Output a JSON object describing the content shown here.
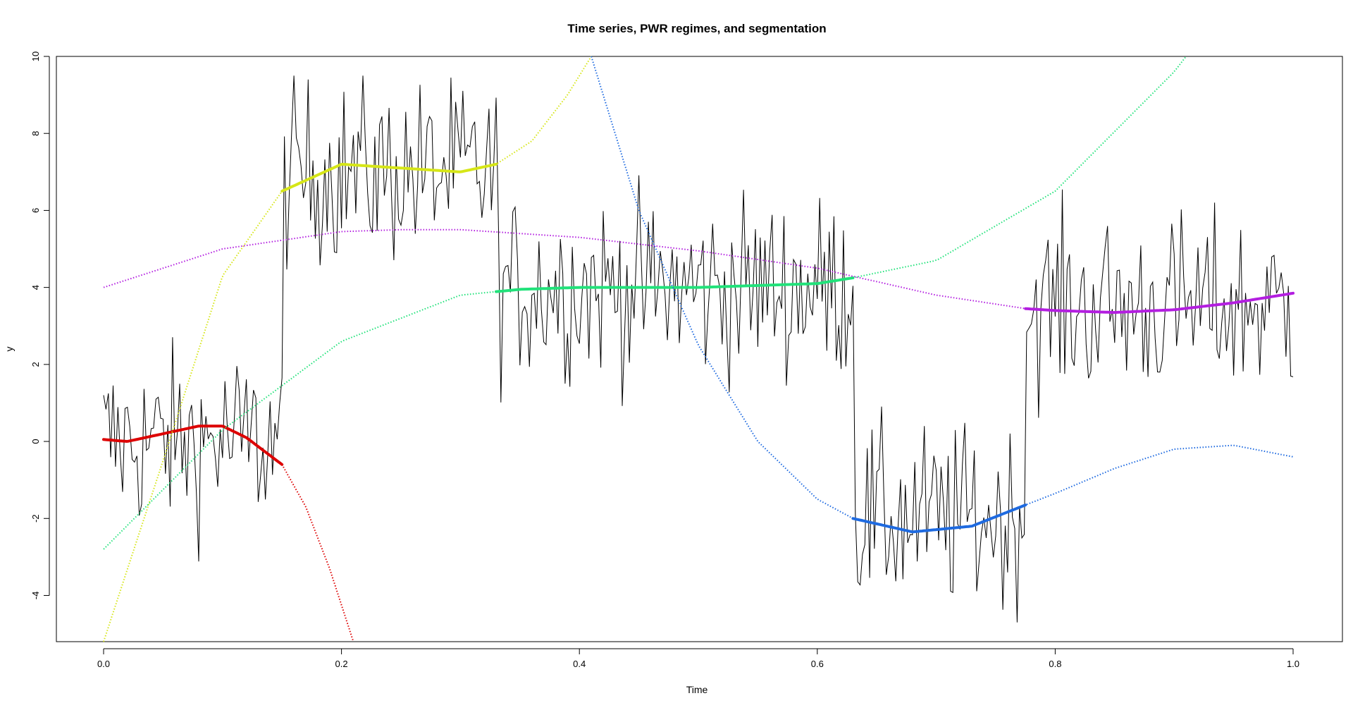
{
  "chart_data": {
    "type": "line",
    "title": "Time series, PWR regimes, and segmentation",
    "xlabel": "Time",
    "ylabel": "y",
    "xlim": [
      0,
      1
    ],
    "ylim": [
      -5.2,
      10
    ],
    "grid": false,
    "legend": "none",
    "x_ticks": [
      {
        "value": 0.0,
        "label": "0.0"
      },
      {
        "value": 0.2,
        "label": "0.2"
      },
      {
        "value": 0.4,
        "label": "0.4"
      },
      {
        "value": 0.6,
        "label": "0.6"
      },
      {
        "value": 0.8,
        "label": "0.8"
      },
      {
        "value": 1.0,
        "label": "1.0"
      }
    ],
    "y_ticks": [
      {
        "value": -4,
        "label": "-4"
      },
      {
        "value": -2,
        "label": "-2"
      },
      {
        "value": 0,
        "label": "0"
      },
      {
        "value": 2,
        "label": "2"
      },
      {
        "value": 4,
        "label": "4"
      },
      {
        "value": 6,
        "label": "6"
      },
      {
        "value": 8,
        "label": "8"
      },
      {
        "value": 10,
        "label": "10"
      }
    ],
    "time_series": {
      "color": "#000000",
      "segments": [
        {
          "start": 0.0,
          "end": 0.15,
          "level": 0.0
        },
        {
          "start": 0.15,
          "end": 0.33,
          "level": 7.0
        },
        {
          "start": 0.33,
          "end": 0.63,
          "level": 4.0
        },
        {
          "start": 0.63,
          "end": 0.775,
          "level": -2.0
        },
        {
          "start": 0.775,
          "end": 1.0,
          "level": 3.5
        }
      ],
      "noise_amplitude": 1.2,
      "samples": 500
    },
    "regimes": [
      {
        "color": "#dd0000",
        "x": [
          0.0,
          0.02,
          0.05,
          0.08,
          0.1,
          0.12,
          0.15,
          0.17,
          0.19,
          0.21
        ],
        "y": [
          0.05,
          0.0,
          0.2,
          0.4,
          0.4,
          0.1,
          -0.6,
          -1.7,
          -3.3,
          -5.2
        ],
        "segment": [
          0.0,
          0.15
        ]
      },
      {
        "color": "#d6e617",
        "x": [
          0.0,
          0.05,
          0.1,
          0.15,
          0.2,
          0.25,
          0.3,
          0.33,
          0.36,
          0.39,
          0.41
        ],
        "y": [
          -5.2,
          -0.5,
          4.3,
          6.5,
          7.2,
          7.1,
          7.0,
          7.2,
          7.8,
          9.0,
          10.0
        ],
        "segment": [
          0.15,
          0.33
        ]
      },
      {
        "color": "#21e27a",
        "x": [
          0.0,
          0.1,
          0.2,
          0.3,
          0.35,
          0.4,
          0.5,
          0.6,
          0.63,
          0.7,
          0.8,
          0.9,
          0.91
        ],
        "y": [
          -2.8,
          0.3,
          2.6,
          3.8,
          3.95,
          4.0,
          4.0,
          4.1,
          4.25,
          4.7,
          6.5,
          9.6,
          10.0
        ],
        "segment": [
          0.33,
          0.63
        ]
      },
      {
        "color": "#1e6ae0",
        "x": [
          0.41,
          0.45,
          0.5,
          0.55,
          0.6,
          0.63,
          0.68,
          0.73,
          0.775,
          0.8,
          0.85,
          0.9,
          0.95,
          1.0
        ],
        "y": [
          10.0,
          6.0,
          2.5,
          0.0,
          -1.5,
          -2.0,
          -2.35,
          -2.2,
          -1.65,
          -1.35,
          -0.7,
          -0.2,
          -0.1,
          -0.4
        ],
        "segment": [
          0.63,
          0.775
        ]
      },
      {
        "color": "#b31ee0",
        "x": [
          0.0,
          0.1,
          0.2,
          0.25,
          0.3,
          0.4,
          0.5,
          0.6,
          0.7,
          0.775,
          0.8,
          0.85,
          0.9,
          0.95,
          1.0
        ],
        "y": [
          4.0,
          5.0,
          5.45,
          5.5,
          5.5,
          5.3,
          4.95,
          4.5,
          3.8,
          3.45,
          3.4,
          3.35,
          3.42,
          3.6,
          3.85
        ],
        "segment": [
          0.775,
          1.0
        ]
      }
    ]
  }
}
